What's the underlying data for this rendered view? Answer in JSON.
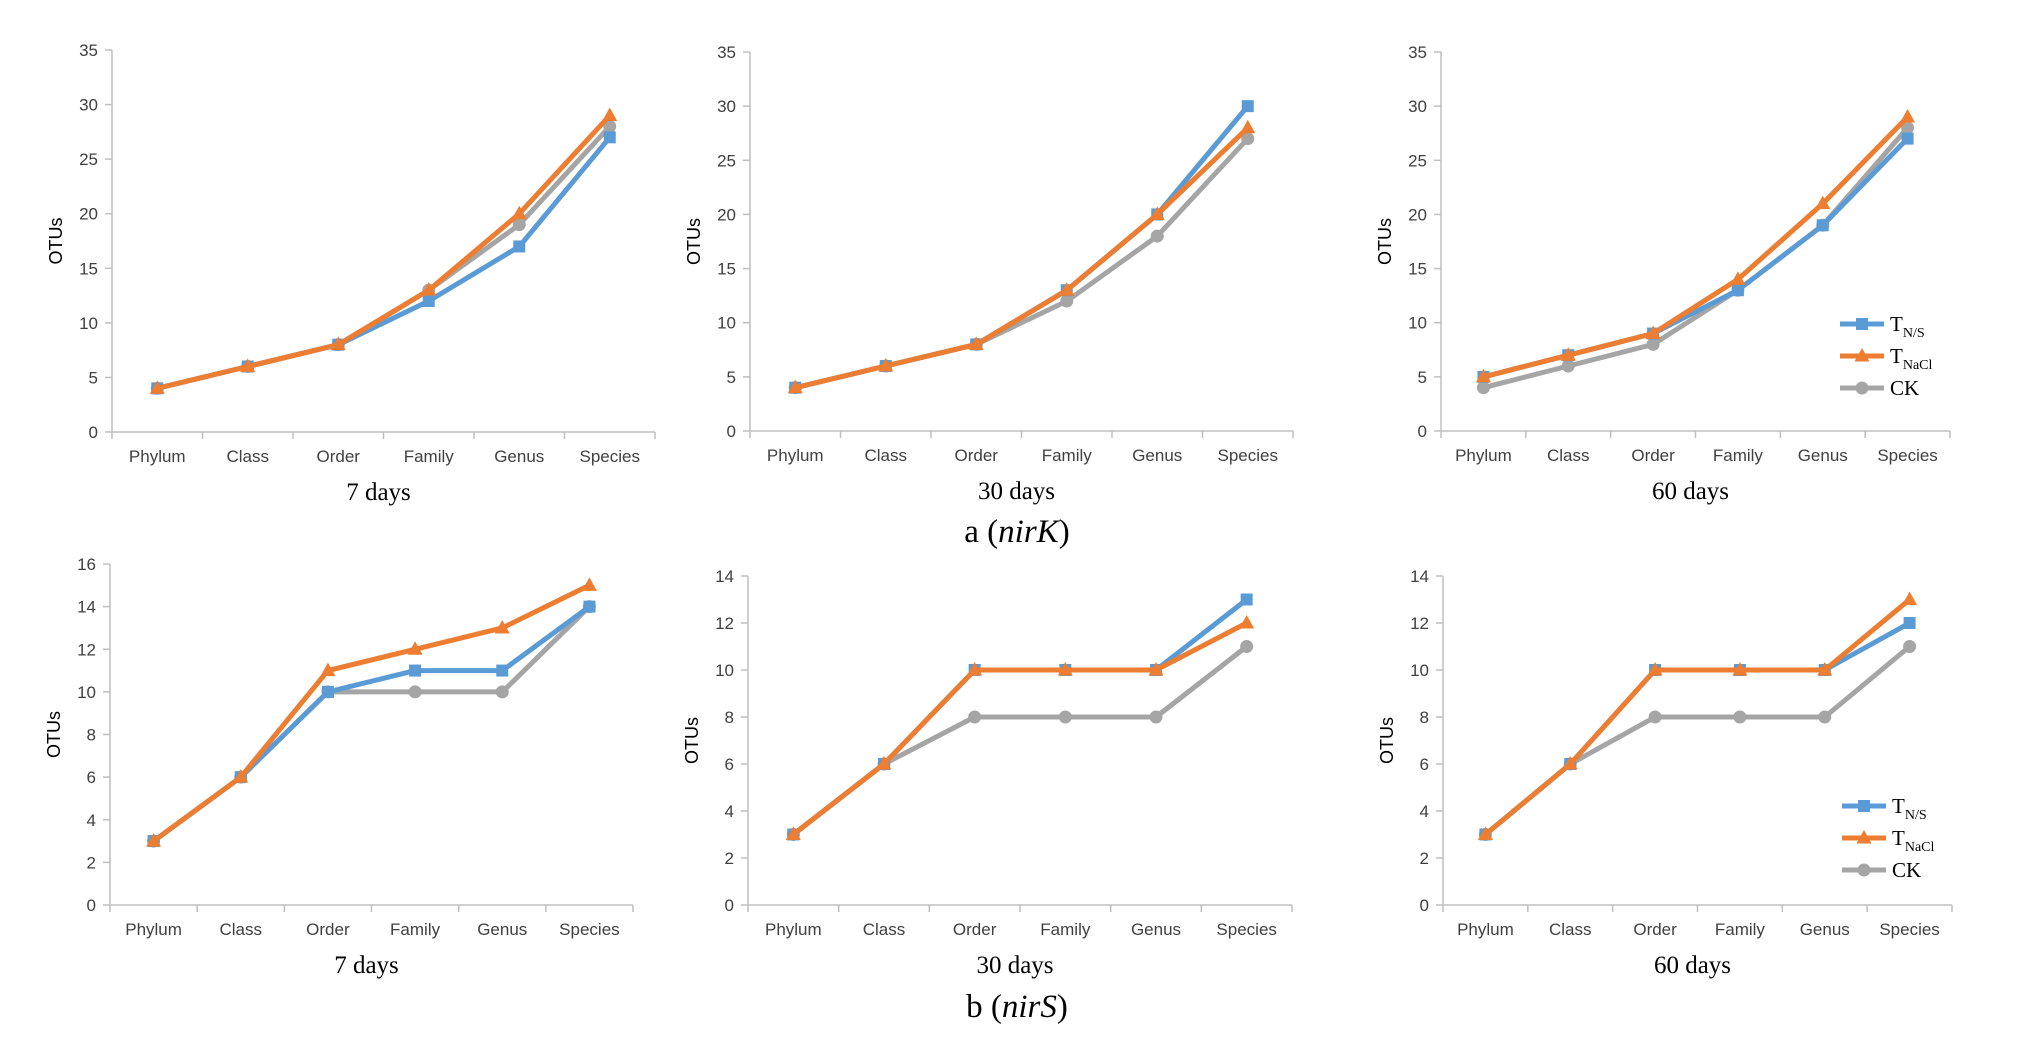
{
  "series_style": {
    "TNS": {
      "color": "#5b9bd5",
      "marker": "square"
    },
    "TNaCl": {
      "color": "#ed7d31",
      "marker": "triangle"
    },
    "CK": {
      "color": "#a5a5a5",
      "marker": "circle"
    }
  },
  "legend": {
    "items": [
      {
        "key": "TNS",
        "main": "T",
        "sub": "N/S"
      },
      {
        "key": "TNaCl",
        "main": "T",
        "sub": "NaCl"
      },
      {
        "key": "CK",
        "main": "CK",
        "sub": ""
      }
    ]
  },
  "captions": {
    "a": {
      "prefix": "a (",
      "gene": "nirK",
      "suffix": ")"
    },
    "b": {
      "prefix": "b (",
      "gene": "nirS",
      "suffix": ")"
    }
  },
  "chart_data": [
    {
      "type": "line",
      "group": "a",
      "title": "7 days",
      "ylabel": "OTUs",
      "xlabel": "",
      "categories": [
        "Phylum",
        "Class",
        "Order",
        "Family",
        "Genus",
        "Species"
      ],
      "ylim": [
        0,
        35
      ],
      "yticks": [
        0,
        5,
        10,
        15,
        20,
        25,
        30,
        35
      ],
      "legend": false,
      "series": [
        {
          "key": "TNS",
          "name": "TN/S",
          "values": [
            4,
            6,
            8,
            12,
            17,
            27
          ]
        },
        {
          "key": "TNaCl",
          "name": "TNaCl",
          "values": [
            4,
            6,
            8,
            13,
            20,
            29
          ]
        },
        {
          "key": "CK",
          "name": "CK",
          "values": [
            4,
            6,
            8,
            13,
            19,
            28
          ]
        }
      ]
    },
    {
      "type": "line",
      "group": "a",
      "title": "30 days",
      "ylabel": "OTUs",
      "xlabel": "",
      "categories": [
        "Phylum",
        "Class",
        "Order",
        "Family",
        "Genus",
        "Species"
      ],
      "ylim": [
        0,
        35
      ],
      "yticks": [
        0,
        5,
        10,
        15,
        20,
        25,
        30,
        35
      ],
      "legend": false,
      "series": [
        {
          "key": "TNS",
          "name": "TN/S",
          "values": [
            4,
            6,
            8,
            13,
            20,
            30
          ]
        },
        {
          "key": "TNaCl",
          "name": "TNaCl",
          "values": [
            4,
            6,
            8,
            13,
            20,
            28
          ]
        },
        {
          "key": "CK",
          "name": "CK",
          "values": [
            4,
            6,
            8,
            12,
            18,
            27
          ]
        }
      ]
    },
    {
      "type": "line",
      "group": "a",
      "title": "60 days",
      "ylabel": "OTUs",
      "xlabel": "",
      "categories": [
        "Phylum",
        "Class",
        "Order",
        "Family",
        "Genus",
        "Species"
      ],
      "ylim": [
        0,
        35
      ],
      "yticks": [
        0,
        5,
        10,
        15,
        20,
        25,
        30,
        35
      ],
      "legend": true,
      "series": [
        {
          "key": "TNS",
          "name": "TN/S",
          "values": [
            5,
            7,
            9,
            13,
            19,
            27
          ]
        },
        {
          "key": "TNaCl",
          "name": "TNaCl",
          "values": [
            5,
            7,
            9,
            14,
            21,
            29
          ]
        },
        {
          "key": "CK",
          "name": "CK",
          "values": [
            4,
            6,
            8,
            13,
            19,
            28
          ]
        }
      ]
    },
    {
      "type": "line",
      "group": "b",
      "title": "7 days",
      "ylabel": "OTUs",
      "xlabel": "",
      "categories": [
        "Phylum",
        "Class",
        "Order",
        "Family",
        "Genus",
        "Species"
      ],
      "ylim": [
        0,
        16
      ],
      "yticks": [
        0,
        2,
        4,
        6,
        8,
        10,
        12,
        14,
        16
      ],
      "legend": false,
      "series": [
        {
          "key": "TNS",
          "name": "TN/S",
          "values": [
            3,
            6,
            10,
            11,
            11,
            14
          ]
        },
        {
          "key": "TNaCl",
          "name": "TNaCl",
          "values": [
            3,
            6,
            11,
            12,
            13,
            15
          ]
        },
        {
          "key": "CK",
          "name": "CK",
          "values": [
            3,
            6,
            10,
            10,
            10,
            14
          ]
        }
      ]
    },
    {
      "type": "line",
      "group": "b",
      "title": "30 days",
      "ylabel": "OTUs",
      "xlabel": "",
      "categories": [
        "Phylum",
        "Class",
        "Order",
        "Family",
        "Genus",
        "Species"
      ],
      "ylim": [
        0,
        14
      ],
      "yticks": [
        0,
        2,
        4,
        6,
        8,
        10,
        12,
        14
      ],
      "legend": false,
      "series": [
        {
          "key": "TNS",
          "name": "TN/S",
          "values": [
            3,
            6,
            10,
            10,
            10,
            13
          ]
        },
        {
          "key": "TNaCl",
          "name": "TNaCl",
          "values": [
            3,
            6,
            10,
            10,
            10,
            12
          ]
        },
        {
          "key": "CK",
          "name": "CK",
          "values": [
            3,
            6,
            8,
            8,
            8,
            11
          ]
        }
      ]
    },
    {
      "type": "line",
      "group": "b",
      "title": "60 days",
      "ylabel": "OTUs",
      "xlabel": "",
      "categories": [
        "Phylum",
        "Class",
        "Order",
        "Family",
        "Genus",
        "Species"
      ],
      "ylim": [
        0,
        14
      ],
      "yticks": [
        0,
        2,
        4,
        6,
        8,
        10,
        12,
        14
      ],
      "legend": true,
      "series": [
        {
          "key": "TNS",
          "name": "TN/S",
          "values": [
            3,
            6,
            10,
            10,
            10,
            12
          ]
        },
        {
          "key": "TNaCl",
          "name": "TNaCl",
          "values": [
            3,
            6,
            10,
            10,
            10,
            13
          ]
        },
        {
          "key": "CK",
          "name": "CK",
          "values": [
            3,
            6,
            8,
            8,
            8,
            11
          ]
        }
      ]
    }
  ]
}
